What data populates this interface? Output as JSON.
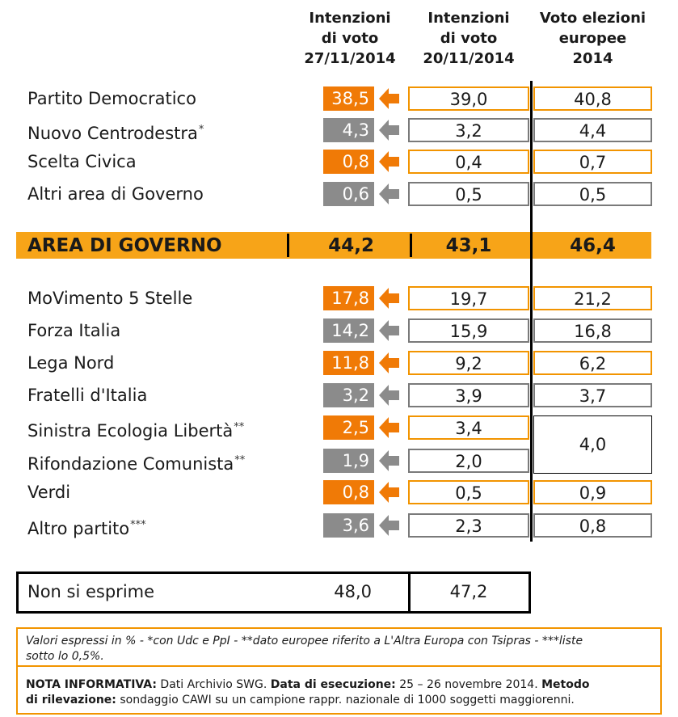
{
  "chart_data": {
    "type": "table",
    "columns": [
      {
        "lines": [
          "Intenzioni",
          "di voto",
          "27/11/2014"
        ]
      },
      {
        "lines": [
          "Intenzioni",
          "di voto",
          "20/11/2014"
        ]
      },
      {
        "lines": [
          "Voto elezioni",
          "europee",
          "2014"
        ]
      }
    ],
    "rows": [
      {
        "party": "Partito Democratico",
        "mark": "",
        "v1": "38,5",
        "v2": "39,0",
        "v3": "40,8",
        "trend": "up"
      },
      {
        "party": "Nuovo Centrodestra",
        "mark": "*",
        "v1": "4,3",
        "v2": "3,2",
        "v3": "4,4",
        "trend": "down"
      },
      {
        "party": "Scelta Civica",
        "mark": "",
        "v1": "0,8",
        "v2": "0,4",
        "v3": "0,7",
        "trend": "up"
      },
      {
        "party": "Altri area di Governo",
        "mark": "",
        "v1": "0,6",
        "v2": "0,5",
        "v3": "0,5",
        "trend": "down"
      },
      {
        "party": "MoVimento 5 Stelle",
        "mark": "",
        "v1": "17,8",
        "v2": "19,7",
        "v3": "21,2",
        "trend": "up"
      },
      {
        "party": "Forza Italia",
        "mark": "",
        "v1": "14,2",
        "v2": "15,9",
        "v3": "16,8",
        "trend": "down"
      },
      {
        "party": "Lega Nord",
        "mark": "",
        "v1": "11,8",
        "v2": "9,2",
        "v3": "6,2",
        "trend": "up"
      },
      {
        "party": "Fratelli d'Italia",
        "mark": "",
        "v1": "3,2",
        "v2": "3,9",
        "v3": "3,7",
        "trend": "down"
      },
      {
        "party": "Sinistra Ecologia Libertà",
        "mark": "**",
        "v1": "2,5",
        "v2": "3,4",
        "v3": "",
        "trend": "up"
      },
      {
        "party": "Rifondazione Comunista",
        "mark": "**",
        "v1": "1,9",
        "v2": "2,0",
        "v3": "",
        "trend": "down"
      },
      {
        "party": "Verdi",
        "mark": "",
        "v1": "0,8",
        "v2": "0,5",
        "v3": "0,9",
        "trend": "up"
      },
      {
        "party": "Altro partito",
        "mark": "***",
        "v1": "3,6",
        "v2": "2,3",
        "v3": "0,8",
        "trend": "down"
      }
    ],
    "merged_europee": "4,0",
    "area_governo": {
      "label": "AREA DI GOVERNO",
      "v1": "44,2",
      "v2": "43,1",
      "v3": "46,4"
    },
    "non_si_esprime": {
      "label": "Non si esprime",
      "v1": "48,0",
      "v2": "47,2"
    },
    "colors": {
      "up": "#f07a06",
      "down": "#8b8b8b",
      "band": "#f7a418",
      "border": "#f29400",
      "gray_border": "#7a7a7a"
    }
  },
  "footer": {
    "note1": "Valori espressi in % - *con Udc e PpI  - **dato europee riferito a L'Altra Europa con Tsipras - ***liste",
    "note2": "sotto lo 0,5%.",
    "info_bold1": "NOTA INFORMATIVA:",
    "info_t1": " Dati Archivio SWG. ",
    "info_bold2": "Data di esecuzione:",
    "info_t2": " 25 – 26 novembre 2014. ",
    "info_bold3": "Metodo",
    "info_bold4": "di rilevazione:",
    "info_t3": " sondaggio CAWI su un campione rappr. nazionale di 1000 soggetti maggiorenni."
  }
}
